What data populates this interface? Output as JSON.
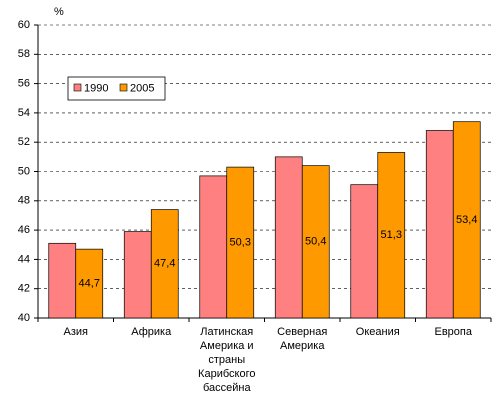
{
  "chart_data": {
    "type": "bar",
    "y_unit": "%",
    "categories": [
      "Азия",
      "Африка",
      "Латинская Америка и страны Карибского бассейна",
      "Северная Америка",
      "Океания",
      "Европа"
    ],
    "series": [
      {
        "name": "1990",
        "color": "#ff8080",
        "values": [
          45.1,
          45.9,
          49.7,
          51.0,
          49.1,
          52.8
        ]
      },
      {
        "name": "2005",
        "color": "#ff9900",
        "values": [
          44.7,
          47.4,
          50.3,
          50.4,
          51.3,
          53.4
        ],
        "value_labels": [
          "44,7",
          "47,4",
          "50,3",
          "50,4",
          "51,3",
          "53,4"
        ]
      }
    ],
    "ylim": [
      40,
      60
    ],
    "yticks": [
      40,
      42,
      44,
      46,
      48,
      50,
      52,
      54,
      56,
      58,
      60
    ],
    "grid": true,
    "legend": "upper left"
  }
}
